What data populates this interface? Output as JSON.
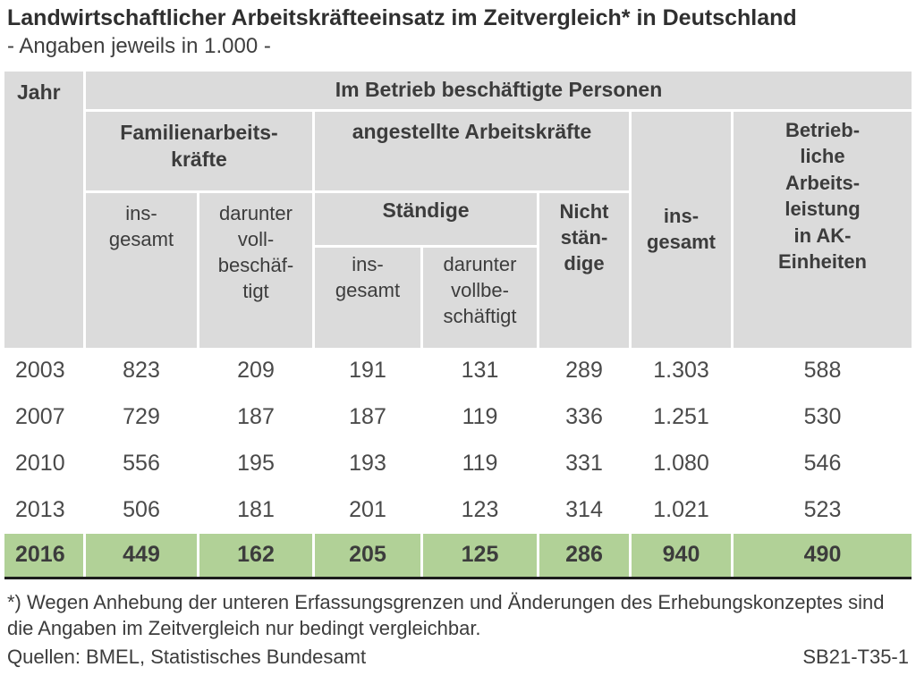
{
  "title": "Landwirtschaftlicher Arbeitskräfteeinsatz im Zeitvergleich* in Deutschland",
  "subtitle": "- Angaben jeweils in 1.000 -",
  "colors": {
    "header_bg": "#dbdbdb",
    "highlight_row_bg": "#b1d197",
    "text": "#3c3c3c",
    "bottom_rule": "#1c1c1c"
  },
  "table": {
    "header": {
      "jahr": "Jahr",
      "group_top": "Im Betrieb beschäftigte Personen",
      "family_group": "Familienarbeits-\nkräfte",
      "family_total": "ins-\ngesamt",
      "family_fulltime": "darunter\nvoll-\nbeschäf-\ntigt",
      "employed_group": "angestellte Arbeitskräfte",
      "permanent_group": "Ständige",
      "permanent_total": "ins-\ngesamt",
      "permanent_fulltime": "darunter\nvollbe-\nschäftigt",
      "non_permanent": "Nicht\nstän-\ndige",
      "overall_total": "ins-\ngesamt",
      "ak_units": "Betrieb-\nliche\nArbeits-\nleistung\nin AK-\nEinheiten"
    },
    "rows": [
      {
        "year": "2003",
        "values": [
          "823",
          "209",
          "191",
          "131",
          "289",
          "1.303",
          "588"
        ]
      },
      {
        "year": "2007",
        "values": [
          "729",
          "187",
          "187",
          "119",
          "336",
          "1.251",
          "530"
        ]
      },
      {
        "year": "2010",
        "values": [
          "556",
          "195",
          "193",
          "119",
          "331",
          "1.080",
          "546"
        ]
      },
      {
        "year": "2013",
        "values": [
          "506",
          "181",
          "201",
          "123",
          "314",
          "1.021",
          "523"
        ]
      },
      {
        "year": "2016",
        "values": [
          "449",
          "162",
          "205",
          "125",
          "286",
          "940",
          "490"
        ]
      }
    ]
  },
  "footnote": "*) Wegen Anhebung der unteren Erfassungsgrenzen und Änderungen des Erhebungskonzeptes sind die Angaben im Zeitvergleich nur bedingt vergleichbar.",
  "source": "Quellen: BMEL, Statistisches Bundesamt",
  "code": "SB21-T35-1",
  "chart_data": {
    "type": "table",
    "title": "Landwirtschaftlicher Arbeitskräfteeinsatz im Zeitvergleich* in Deutschland",
    "subtitle": "- Angaben jeweils in 1.000 -",
    "unit": "1.000 (Tausend)",
    "columns": [
      "Jahr",
      "Familienarbeitskräfte insgesamt",
      "Familienarbeitskräfte darunter vollbeschäftigt",
      "angestellte Arbeitskräfte Ständige insgesamt",
      "angestellte Arbeitskräfte Ständige darunter vollbeschäftigt",
      "angestellte Arbeitskräfte Nicht ständige",
      "insgesamt",
      "Betriebliche Arbeitsleistung in AK-Einheiten"
    ],
    "rows": [
      [
        2003,
        823,
        209,
        191,
        131,
        289,
        1303,
        588
      ],
      [
        2007,
        729,
        187,
        187,
        119,
        336,
        1251,
        530
      ],
      [
        2010,
        556,
        195,
        193,
        119,
        331,
        1080,
        546
      ],
      [
        2013,
        506,
        181,
        201,
        123,
        314,
        1021,
        523
      ],
      [
        2016,
        449,
        162,
        205,
        125,
        286,
        940,
        490
      ]
    ],
    "highlighted_row": 2016,
    "legend_position": "none",
    "grid": false
  }
}
